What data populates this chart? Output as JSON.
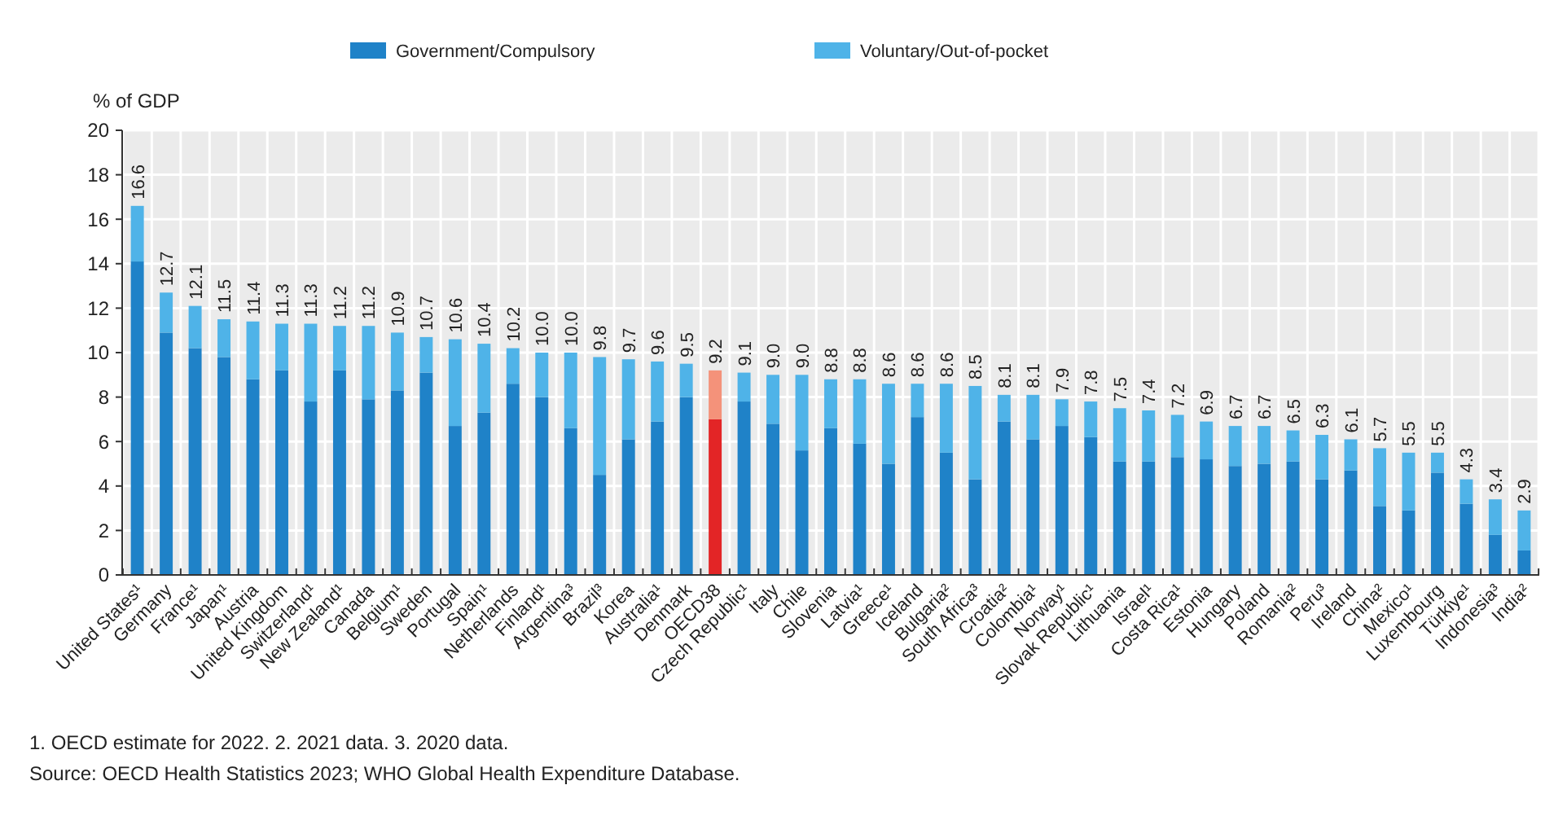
{
  "chart_data": {
    "type": "bar",
    "stacked": true,
    "ylabel": "% of GDP",
    "legend": "top",
    "grid": true,
    "categories": [
      "United States¹",
      "Germany",
      "France¹",
      "Japan¹",
      "Austria",
      "United Kingdom",
      "Switzerland¹",
      "New Zealand¹",
      "Canada",
      "Belgium¹",
      "Sweden",
      "Portugal",
      "Spain¹",
      "Netherlands",
      "Finland¹",
      "Argentina³",
      "Brazil³",
      "Korea",
      "Australia¹",
      "Denmark",
      "OECD38",
      "Czech Republic¹",
      "Italy",
      "Chile",
      "Slovenia",
      "Latvia¹",
      "Greece¹",
      "Iceland",
      "Bulgaria²",
      "South Africa³",
      "Croatia²",
      "Colombia¹",
      "Norway¹",
      "Slovak Republic¹",
      "Lithuania",
      "Israel¹",
      "Costa Rica¹",
      "Estonia",
      "Hungary",
      "Poland",
      "Romania²",
      "Peru³",
      "Ireland",
      "China²",
      "Mexico¹",
      "Luxembourg",
      "Türkiye¹",
      "Indonesia³",
      "India²"
    ],
    "series": [
      {
        "name": "Government/Compulsory",
        "color": "#1f82c8",
        "colors": [
          "#1f82c8",
          "#1f82c8",
          "#1f82c8",
          "#1f82c8",
          "#1f82c8",
          "#1f82c8",
          "#1f82c8",
          "#1f82c8",
          "#1f82c8",
          "#1f82c8",
          "#1f82c8",
          "#1f82c8",
          "#1f82c8",
          "#1f82c8",
          "#1f82c8",
          "#1f82c8",
          "#1f82c8",
          "#1f82c8",
          "#1f82c8",
          "#1f82c8",
          "#e32526",
          "#1f82c8",
          "#1f82c8",
          "#1f82c8",
          "#1f82c8",
          "#1f82c8",
          "#1f82c8",
          "#1f82c8",
          "#1f82c8",
          "#1f82c8",
          "#1f82c8",
          "#1f82c8",
          "#1f82c8",
          "#1f82c8",
          "#1f82c8",
          "#1f82c8",
          "#1f82c8",
          "#1f82c8",
          "#1f82c8",
          "#1f82c8",
          "#1f82c8",
          "#1f82c8",
          "#1f82c8",
          "#1f82c8",
          "#1f82c8",
          "#1f82c8",
          "#1f82c8",
          "#1f82c8",
          "#1f82c8"
        ],
        "values": [
          14.1,
          10.9,
          10.2,
          9.8,
          8.8,
          9.2,
          7.8,
          9.2,
          7.9,
          8.3,
          9.1,
          6.7,
          7.3,
          8.6,
          8.0,
          6.6,
          4.5,
          6.1,
          6.9,
          8.0,
          7.0,
          7.8,
          6.8,
          5.6,
          6.6,
          5.9,
          5.0,
          7.1,
          5.5,
          4.3,
          6.9,
          6.1,
          6.7,
          6.2,
          5.1,
          5.1,
          5.3,
          5.2,
          4.9,
          5.0,
          5.1,
          4.3,
          4.7,
          3.1,
          2.9,
          4.6,
          3.2,
          1.8,
          1.1
        ]
      },
      {
        "name": "Voluntary/Out-of-pocket",
        "color": "#4fb3e8",
        "colors": [
          "#4fb3e8",
          "#4fb3e8",
          "#4fb3e8",
          "#4fb3e8",
          "#4fb3e8",
          "#4fb3e8",
          "#4fb3e8",
          "#4fb3e8",
          "#4fb3e8",
          "#4fb3e8",
          "#4fb3e8",
          "#4fb3e8",
          "#4fb3e8",
          "#4fb3e8",
          "#4fb3e8",
          "#4fb3e8",
          "#4fb3e8",
          "#4fb3e8",
          "#4fb3e8",
          "#4fb3e8",
          "#f4927a",
          "#4fb3e8",
          "#4fb3e8",
          "#4fb3e8",
          "#4fb3e8",
          "#4fb3e8",
          "#4fb3e8",
          "#4fb3e8",
          "#4fb3e8",
          "#4fb3e8",
          "#4fb3e8",
          "#4fb3e8",
          "#4fb3e8",
          "#4fb3e8",
          "#4fb3e8",
          "#4fb3e8",
          "#4fb3e8",
          "#4fb3e8",
          "#4fb3e8",
          "#4fb3e8",
          "#4fb3e8",
          "#4fb3e8",
          "#4fb3e8",
          "#4fb3e8",
          "#4fb3e8",
          "#4fb3e8",
          "#4fb3e8",
          "#4fb3e8",
          "#4fb3e8"
        ],
        "values": [
          2.5,
          1.8,
          1.9,
          1.7,
          2.6,
          2.1,
          3.5,
          2.0,
          3.3,
          2.6,
          1.6,
          3.9,
          3.1,
          1.6,
          2.0,
          3.4,
          5.3,
          3.6,
          2.7,
          1.5,
          2.2,
          1.3,
          2.2,
          3.4,
          2.2,
          2.9,
          3.6,
          1.5,
          3.1,
          4.2,
          1.2,
          2.0,
          1.2,
          1.6,
          2.4,
          2.3,
          1.9,
          1.7,
          1.8,
          1.7,
          1.4,
          2.0,
          1.4,
          2.6,
          2.6,
          0.9,
          1.1,
          1.6,
          1.8
        ]
      }
    ],
    "totals": [
      "16.6",
      "12.7",
      "12.1",
      "11.5",
      "11.4",
      "11.3",
      "11.3",
      "11.2",
      "11.2",
      "10.9",
      "10.7",
      "10.6",
      "10.4",
      "10.2",
      "10.0",
      "10.0",
      "9.8",
      "9.7",
      "9.6",
      "9.5",
      "9.2",
      "9.1",
      "9.0",
      "9.0",
      "8.8",
      "8.8",
      "8.6",
      "8.6",
      "8.6",
      "8.5",
      "8.1",
      "8.1",
      "7.9",
      "7.8",
      "7.5",
      "7.4",
      "7.2",
      "6.9",
      "6.7",
      "6.7",
      "6.5",
      "6.3",
      "6.1",
      "5.7",
      "5.5",
      "5.5",
      "4.3",
      "3.4",
      "2.9"
    ],
    "ylim": [
      0,
      20
    ],
    "yticks": [
      0,
      2,
      4,
      6,
      8,
      10,
      12,
      14,
      16,
      18,
      20
    ],
    "annotations": [
      "1. OECD estimate for 2022. 2. 2021 data. 3. 2020 data.",
      "Source: OECD Health Statistics 2023; WHO Global Health Expenditure Database."
    ]
  }
}
